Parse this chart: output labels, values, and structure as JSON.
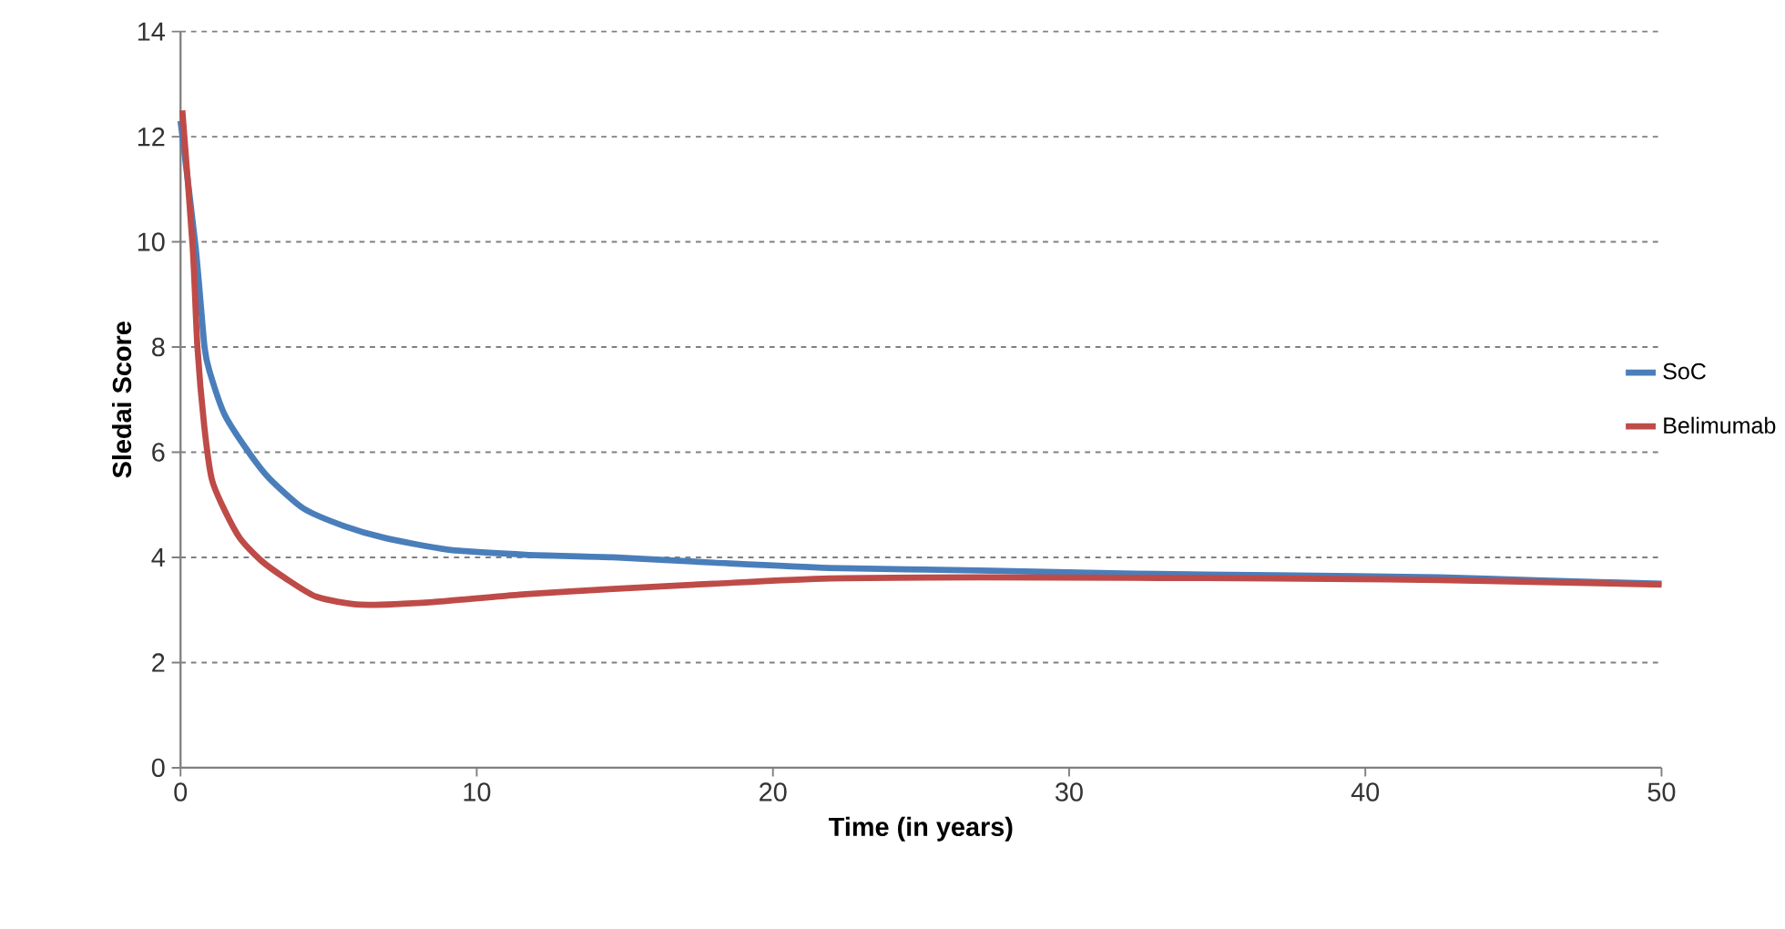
{
  "chart_data": {
    "type": "line",
    "xlabel": "Time (in years)",
    "ylabel": "Sledai Score",
    "xlim": [
      0,
      50
    ],
    "ylim": [
      0,
      14
    ],
    "xticks": [
      0,
      10,
      20,
      30,
      40,
      50
    ],
    "yticks": [
      0,
      2,
      4,
      6,
      8,
      10,
      12,
      14
    ],
    "grid": "y",
    "legend": "right",
    "marker": "none",
    "line_style": "solid",
    "series": [
      {
        "name": "SoC",
        "color": "#4a7ebb",
        "x": [
          0,
          0.51,
          0.81,
          1.0,
          1.5,
          2.3,
          3.0,
          4.15,
          5.5,
          6.9,
          9,
          11.65,
          14.6,
          18,
          21.9,
          27,
          32.2,
          37,
          42.5,
          46,
          50
        ],
        "values": [
          12.3,
          9.9,
          8.0,
          7.5,
          6.7,
          6.0,
          5.5,
          4.93,
          4.6,
          4.37,
          4.15,
          4.05,
          4.0,
          3.9,
          3.8,
          3.75,
          3.69,
          3.66,
          3.62,
          3.56,
          3.5
        ]
      },
      {
        "name": "Belimumab",
        "color": "#be4b48",
        "x": [
          0.06,
          0.41,
          0.57,
          0.8,
          1.05,
          1.4,
          2.0,
          2.7,
          3.55,
          4.6,
          6.1,
          8.5,
          11.65,
          14.6,
          18,
          21.9,
          27,
          32.2,
          37,
          42.5,
          46,
          50
        ],
        "values": [
          12.5,
          9.9,
          8.0,
          6.5,
          5.5,
          5.0,
          4.37,
          3.95,
          3.6,
          3.25,
          3.1,
          3.15,
          3.3,
          3.4,
          3.5,
          3.6,
          3.62,
          3.61,
          3.6,
          3.57,
          3.53,
          3.48
        ]
      }
    ]
  }
}
